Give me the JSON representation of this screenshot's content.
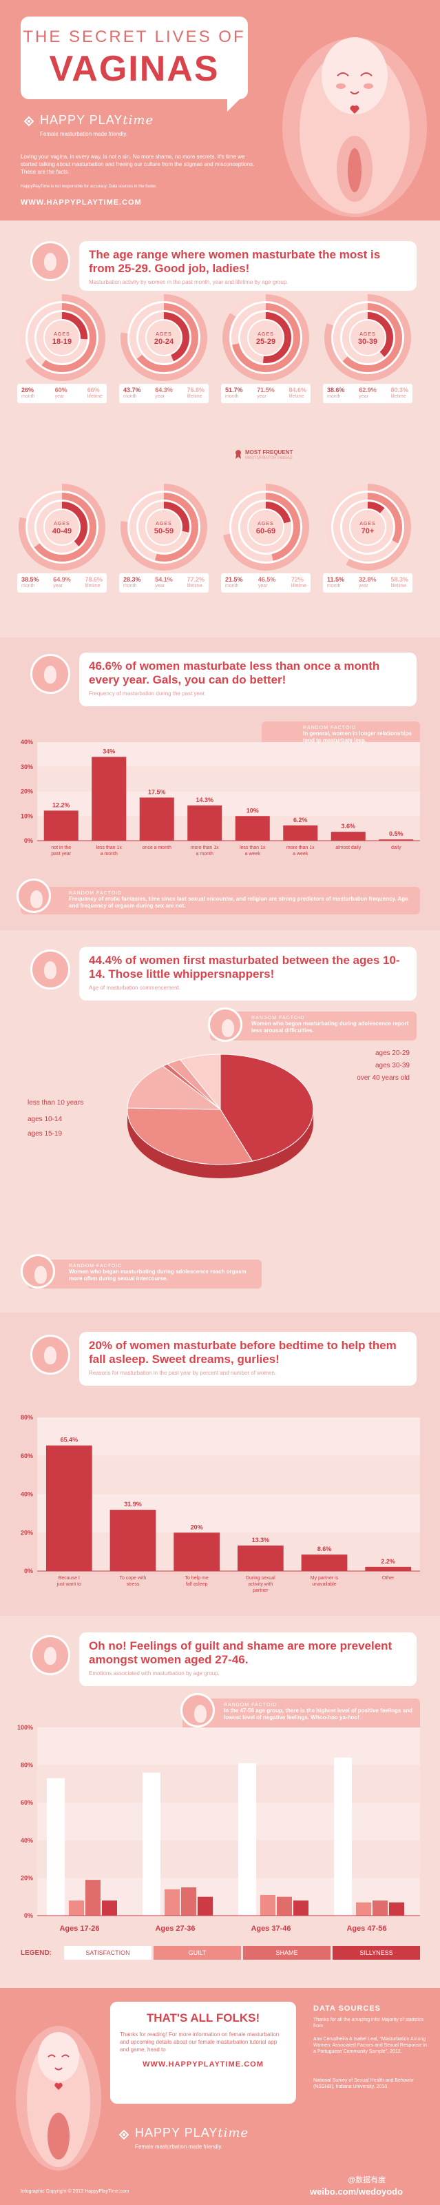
{
  "header": {
    "line1": "THE SECRET LIVES OF",
    "title": "VAGINAS",
    "brand_plain": "HAPPY PLAY",
    "brand_em": "time",
    "tagline": "Female masturbation made friendly.",
    "intro": "Loving your vagina, in every way, is not a sin. No more shame, no more secrets. It's time we started talking about masturbation and freeing our culture from the stigmas and misconceptions. These are the facts.",
    "disclaimer": "HappyPlayTime is not responsible for accuracy. Data sources in the footer.",
    "url": "WWW.HAPPYPLAYTIME.COM"
  },
  "colors": {
    "dark": "#cc3b43",
    "mid": "#f08c86",
    "light": "#f6b3ad",
    "pale": "#fbd9d5",
    "white": "#ffffff"
  },
  "age_section": {
    "headline": "The age range where women masturbate the most is from 25-29. Good job, ladies!",
    "subtitle": "Masturbation activity by women in the past month, year and lifetime by age group.",
    "most_frequent_label": "MOST FREQUENT",
    "most_frequent_sub": "MASTURBATOR AWARD",
    "ages_prefix": "AGES",
    "stat_labels": [
      "month",
      "year",
      "lifetime"
    ]
  },
  "age_groups": [
    {
      "label": "18-19",
      "month": "26%",
      "year": "60%",
      "lifetime": "66%",
      "m": 26,
      "y": 60,
      "l": 66
    },
    {
      "label": "20-24",
      "month": "43.7%",
      "year": "64.3%",
      "lifetime": "76.8%",
      "m": 43.7,
      "y": 64.3,
      "l": 76.8
    },
    {
      "label": "25-29",
      "month": "51.7%",
      "year": "71.5%",
      "lifetime": "84.6%",
      "m": 51.7,
      "y": 71.5,
      "l": 84.6
    },
    {
      "label": "30-39",
      "month": "38.6%",
      "year": "62.9%",
      "lifetime": "80.3%",
      "m": 38.6,
      "y": 62.9,
      "l": 80.3
    },
    {
      "label": "40-49",
      "month": "38.5%",
      "year": "64.9%",
      "lifetime": "78.6%",
      "m": 38.5,
      "y": 64.9,
      "l": 78.6
    },
    {
      "label": "50-59",
      "month": "28.3%",
      "year": "54.1%",
      "lifetime": "77.2%",
      "m": 28.3,
      "y": 54.1,
      "l": 77.2
    },
    {
      "label": "60-69",
      "month": "21.5%",
      "year": "46.5%",
      "lifetime": "72%",
      "m": 21.5,
      "y": 46.5,
      "l": 72
    },
    {
      "label": "70+",
      "month": "11.5%",
      "year": "32.8%",
      "lifetime": "58.3%",
      "m": 11.5,
      "y": 32.8,
      "l": 58.3
    }
  ],
  "freq_section": {
    "headline": "46.6% of women masturbate less than once a month every year. Gals, you can do better!",
    "subtitle": "Frequency of masturbation during the past year.",
    "fact1_label": "RANDOM FACTOID",
    "fact1": "In general, women in longer relationships tend to masturbate less.",
    "fact2_label": "RANDOM FACTOID",
    "fact2": "Frequency of erotic fantasies, time since last sexual encounter, and religion are strong predictors of masturbation frequency. Age and frequency of orgasm during sex are not."
  },
  "reason_section": {
    "headline": "20% of women masturbate before bedtime to help them fall asleep. Sweet dreams, gurlies!",
    "subtitle": "Reasons for masturbation in the past year by percent and number of women."
  },
  "first_section": {
    "headline": "44.4% of women first masturbated between the ages 10-14. Those little whippersnappers!",
    "subtitle": "Age of masturbation commencement.",
    "fact1_label": "RANDOM FACTOID",
    "fact1": "Women who began masturbating during adolescence report less arousal difficulties.",
    "fact2_label": "RANDOM FACTOID",
    "fact2": "Women who began masturbating during adolescence reach orgasm more often during sexual intercourse."
  },
  "guilt_section": {
    "headline": "Oh no! Feelings of guilt and shame are more prevelent amongst women aged 27-46.",
    "subtitle": "Emotions associated with masturbation by age group.",
    "fact_label": "RANDOM FACTOID",
    "fact": "In the 47-56 age group, there is the highest level of positive feelings and lowest level of negative feelings. Whoo-hoo ya-hoo!",
    "legend_title": "LEGEND:"
  },
  "footer": {
    "headline": "THAT'S ALL FOLKS!",
    "text": "Thanks for reading! For more information on female masturbation and upcoming details about our female masturbation tutorial app and game, head to",
    "url": "WWW.HAPPYPLAYTIME.COM",
    "brand_plain": "HAPPY PLAY",
    "brand_em": "time",
    "tagline": "Female masturbation made friendly.",
    "sources_title": "DATA SOURCES",
    "sources_intro": "Thanks for all the amazing info! Majority of statistics from",
    "source1": "Ana Carvalheira & Isabel Leal, \"Masturbation Among Women: Associated Factors and Sexual Response in a Portuguese Community Sample\", 2012.",
    "source2": "National Survey of Sexual Health and Behavior (NSSHB), Indiana University, 2010.",
    "copyright": "Infographic Copyright © 2013 HappyPlayTime.com",
    "watermark": "weibo.com/wedoyodo",
    "watermark2": "@数据有度"
  },
  "chart_data": [
    {
      "type": "bar",
      "id": "frequency",
      "categories": [
        "not in the past year",
        "less than 1x a month",
        "once a month",
        "more than 1x a month",
        "less than 1x a week",
        "more than 1x a week",
        "almost daily",
        "daily"
      ],
      "values": [
        12.2,
        34,
        17.5,
        14.3,
        10,
        6.2,
        3.6,
        0.5
      ],
      "value_labels": [
        "12.2%",
        "34%",
        "17.5%",
        "14.3%",
        "10%",
        "6.2%",
        "3.6%",
        "0.5%"
      ],
      "yticks": [
        "0%",
        "10%",
        "20%",
        "30%",
        "40%"
      ],
      "ylim": [
        0,
        40
      ]
    },
    {
      "type": "pie",
      "id": "first-age",
      "labels": [
        "ages 10-14",
        "ages 15-19",
        "less than 10 years",
        "over 40 years old",
        "ages 30-39",
        "ages 20-29"
      ],
      "values": [
        44.4,
        31,
        14,
        1,
        2.5,
        7.1
      ]
    },
    {
      "type": "bar",
      "id": "reasons",
      "categories": [
        "Because I just want to",
        "To cope with stress",
        "To help me fall asleep",
        "During sexual activity with partner",
        "My partner is unavailable",
        "Other"
      ],
      "values": [
        65.4,
        31.9,
        20,
        13.3,
        8.6,
        2.2
      ],
      "value_labels": [
        "65.4%",
        "31.9%",
        "20%",
        "13.3%",
        "8.6%",
        "2.2%"
      ],
      "yticks": [
        "0%",
        "20%",
        "40%",
        "60%",
        "80%"
      ],
      "ylim": [
        0,
        80
      ]
    },
    {
      "type": "bar",
      "id": "emotions",
      "categories": [
        "Ages 17-26",
        "Ages 27-36",
        "Ages 37-46",
        "Ages 47-56"
      ],
      "series": [
        {
          "name": "SATISFACTION",
          "values": [
            73,
            76,
            81,
            84
          ]
        },
        {
          "name": "GUILT",
          "values": [
            8,
            14,
            11,
            7
          ]
        },
        {
          "name": "SHAME",
          "values": [
            19,
            15,
            10,
            8
          ]
        },
        {
          "name": "SILLYNESS",
          "values": [
            8,
            10,
            8,
            7
          ]
        }
      ],
      "yticks": [
        "0%",
        "20%",
        "40%",
        "60%",
        "80%",
        "100%"
      ],
      "ylim": [
        0,
        100
      ]
    }
  ]
}
